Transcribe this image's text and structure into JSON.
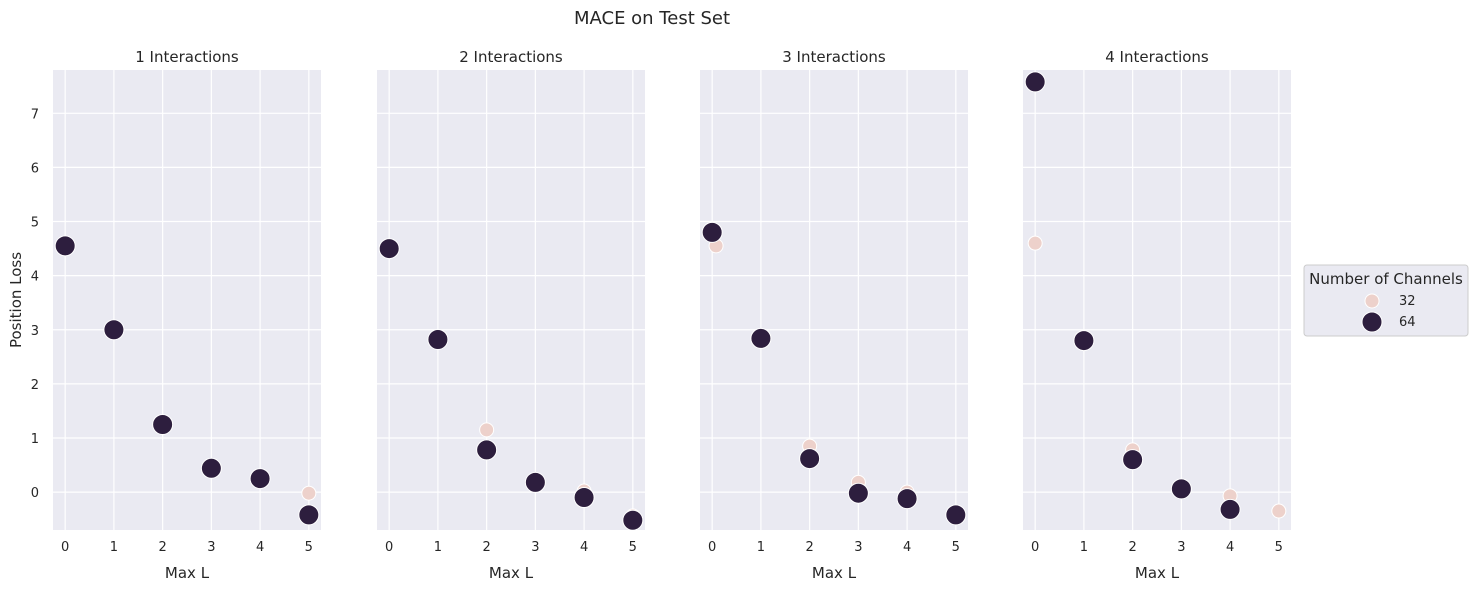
{
  "figure": {
    "title": "MACE on Test Set",
    "colors": {
      "panel_background": "#eaeaf2",
      "grid": "#ffffff",
      "series_32": "#edd1cb",
      "series_64": "#2d1e3e",
      "marker_edge": "#ffffff"
    }
  },
  "chart_data": [
    {
      "type": "scatter",
      "title": "1 Interactions",
      "xlabel": "Max L",
      "ylabel": "Position Loss",
      "x_ticks": [
        "0",
        "1",
        "2",
        "3",
        "4",
        "5"
      ],
      "y_ticks": [
        "0",
        "1",
        "2",
        "3",
        "4",
        "5",
        "6",
        "7"
      ],
      "xlim": [
        -0.25,
        5.25
      ],
      "ylim": [
        -0.7,
        7.8
      ],
      "grid": true,
      "series": [
        {
          "name": "32",
          "points": [
            {
              "x": 0,
              "y": 4.55
            },
            {
              "x": 1,
              "y": 3.0
            },
            {
              "x": 2,
              "y": 1.25
            },
            {
              "x": 3,
              "y": 0.44
            },
            {
              "x": 4,
              "y": 0.25
            },
            {
              "x": 5,
              "y": -0.02
            }
          ]
        },
        {
          "name": "64",
          "points": [
            {
              "x": 0,
              "y": 4.55
            },
            {
              "x": 1,
              "y": 3.0
            },
            {
              "x": 2,
              "y": 1.25
            },
            {
              "x": 3,
              "y": 0.44
            },
            {
              "x": 4,
              "y": 0.25
            },
            {
              "x": 5,
              "y": -0.42
            }
          ]
        }
      ]
    },
    {
      "type": "scatter",
      "title": "2 Interactions",
      "xlabel": "Max L",
      "ylabel": "",
      "x_ticks": [
        "0",
        "1",
        "2",
        "3",
        "4",
        "5"
      ],
      "y_ticks": [],
      "xlim": [
        -0.25,
        5.25
      ],
      "ylim": [
        -0.7,
        7.8
      ],
      "grid": true,
      "series": [
        {
          "name": "32",
          "points": [
            {
              "x": 0,
              "y": 4.5
            },
            {
              "x": 1,
              "y": 2.82
            },
            {
              "x": 2,
              "y": 1.15
            },
            {
              "x": 3,
              "y": 0.18
            },
            {
              "x": 4,
              "y": 0.02
            },
            {
              "x": 5,
              "y": -0.44
            }
          ]
        },
        {
          "name": "64",
          "points": [
            {
              "x": 0,
              "y": 4.5
            },
            {
              "x": 1,
              "y": 2.82
            },
            {
              "x": 2,
              "y": 0.78
            },
            {
              "x": 3,
              "y": 0.18
            },
            {
              "x": 4,
              "y": -0.1
            },
            {
              "x": 5,
              "y": -0.52
            }
          ]
        }
      ]
    },
    {
      "type": "scatter",
      "title": "3 Interactions",
      "xlabel": "Max L",
      "ylabel": "",
      "x_ticks": [
        "0",
        "1",
        "2",
        "3",
        "4",
        "5"
      ],
      "y_ticks": [],
      "xlim": [
        -0.25,
        5.25
      ],
      "ylim": [
        -0.7,
        7.8
      ],
      "grid": true,
      "series": [
        {
          "name": "32",
          "points": [
            {
              "x": 0.08,
              "y": 4.55
            },
            {
              "x": 1,
              "y": 2.84
            },
            {
              "x": 2,
              "y": 0.85
            },
            {
              "x": 3,
              "y": 0.18
            },
            {
              "x": 4,
              "y": 0.0
            },
            {
              "x": 5,
              "y": -0.42
            }
          ]
        },
        {
          "name": "64",
          "points": [
            {
              "x": 0,
              "y": 4.8
            },
            {
              "x": 1,
              "y": 2.84
            },
            {
              "x": 2,
              "y": 0.62
            },
            {
              "x": 3,
              "y": -0.02
            },
            {
              "x": 4,
              "y": -0.12
            },
            {
              "x": 5,
              "y": -0.42
            }
          ]
        }
      ]
    },
    {
      "type": "scatter",
      "title": "4 Interactions",
      "xlabel": "Max L",
      "ylabel": "",
      "x_ticks": [
        "0",
        "1",
        "2",
        "3",
        "4",
        "5"
      ],
      "y_ticks": [],
      "xlim": [
        -0.25,
        5.25
      ],
      "ylim": [
        -0.7,
        7.8
      ],
      "grid": true,
      "series": [
        {
          "name": "32",
          "points": [
            {
              "x": 0,
              "y": 4.6
            },
            {
              "x": 1,
              "y": 2.8
            },
            {
              "x": 2,
              "y": 0.78
            },
            {
              "x": 3,
              "y": 0.06
            },
            {
              "x": 4,
              "y": -0.07
            },
            {
              "x": 5,
              "y": -0.35
            }
          ]
        },
        {
          "name": "64",
          "points": [
            {
              "x": 0,
              "y": 7.58
            },
            {
              "x": 1,
              "y": 2.8
            },
            {
              "x": 2,
              "y": 0.6
            },
            {
              "x": 3,
              "y": 0.06
            },
            {
              "x": 4,
              "y": -0.32
            }
          ]
        }
      ]
    }
  ],
  "legend": {
    "title": "Number of Channels",
    "placement": "right",
    "entries": [
      {
        "label": "32",
        "series": "32"
      },
      {
        "label": "64",
        "series": "64"
      }
    ]
  }
}
